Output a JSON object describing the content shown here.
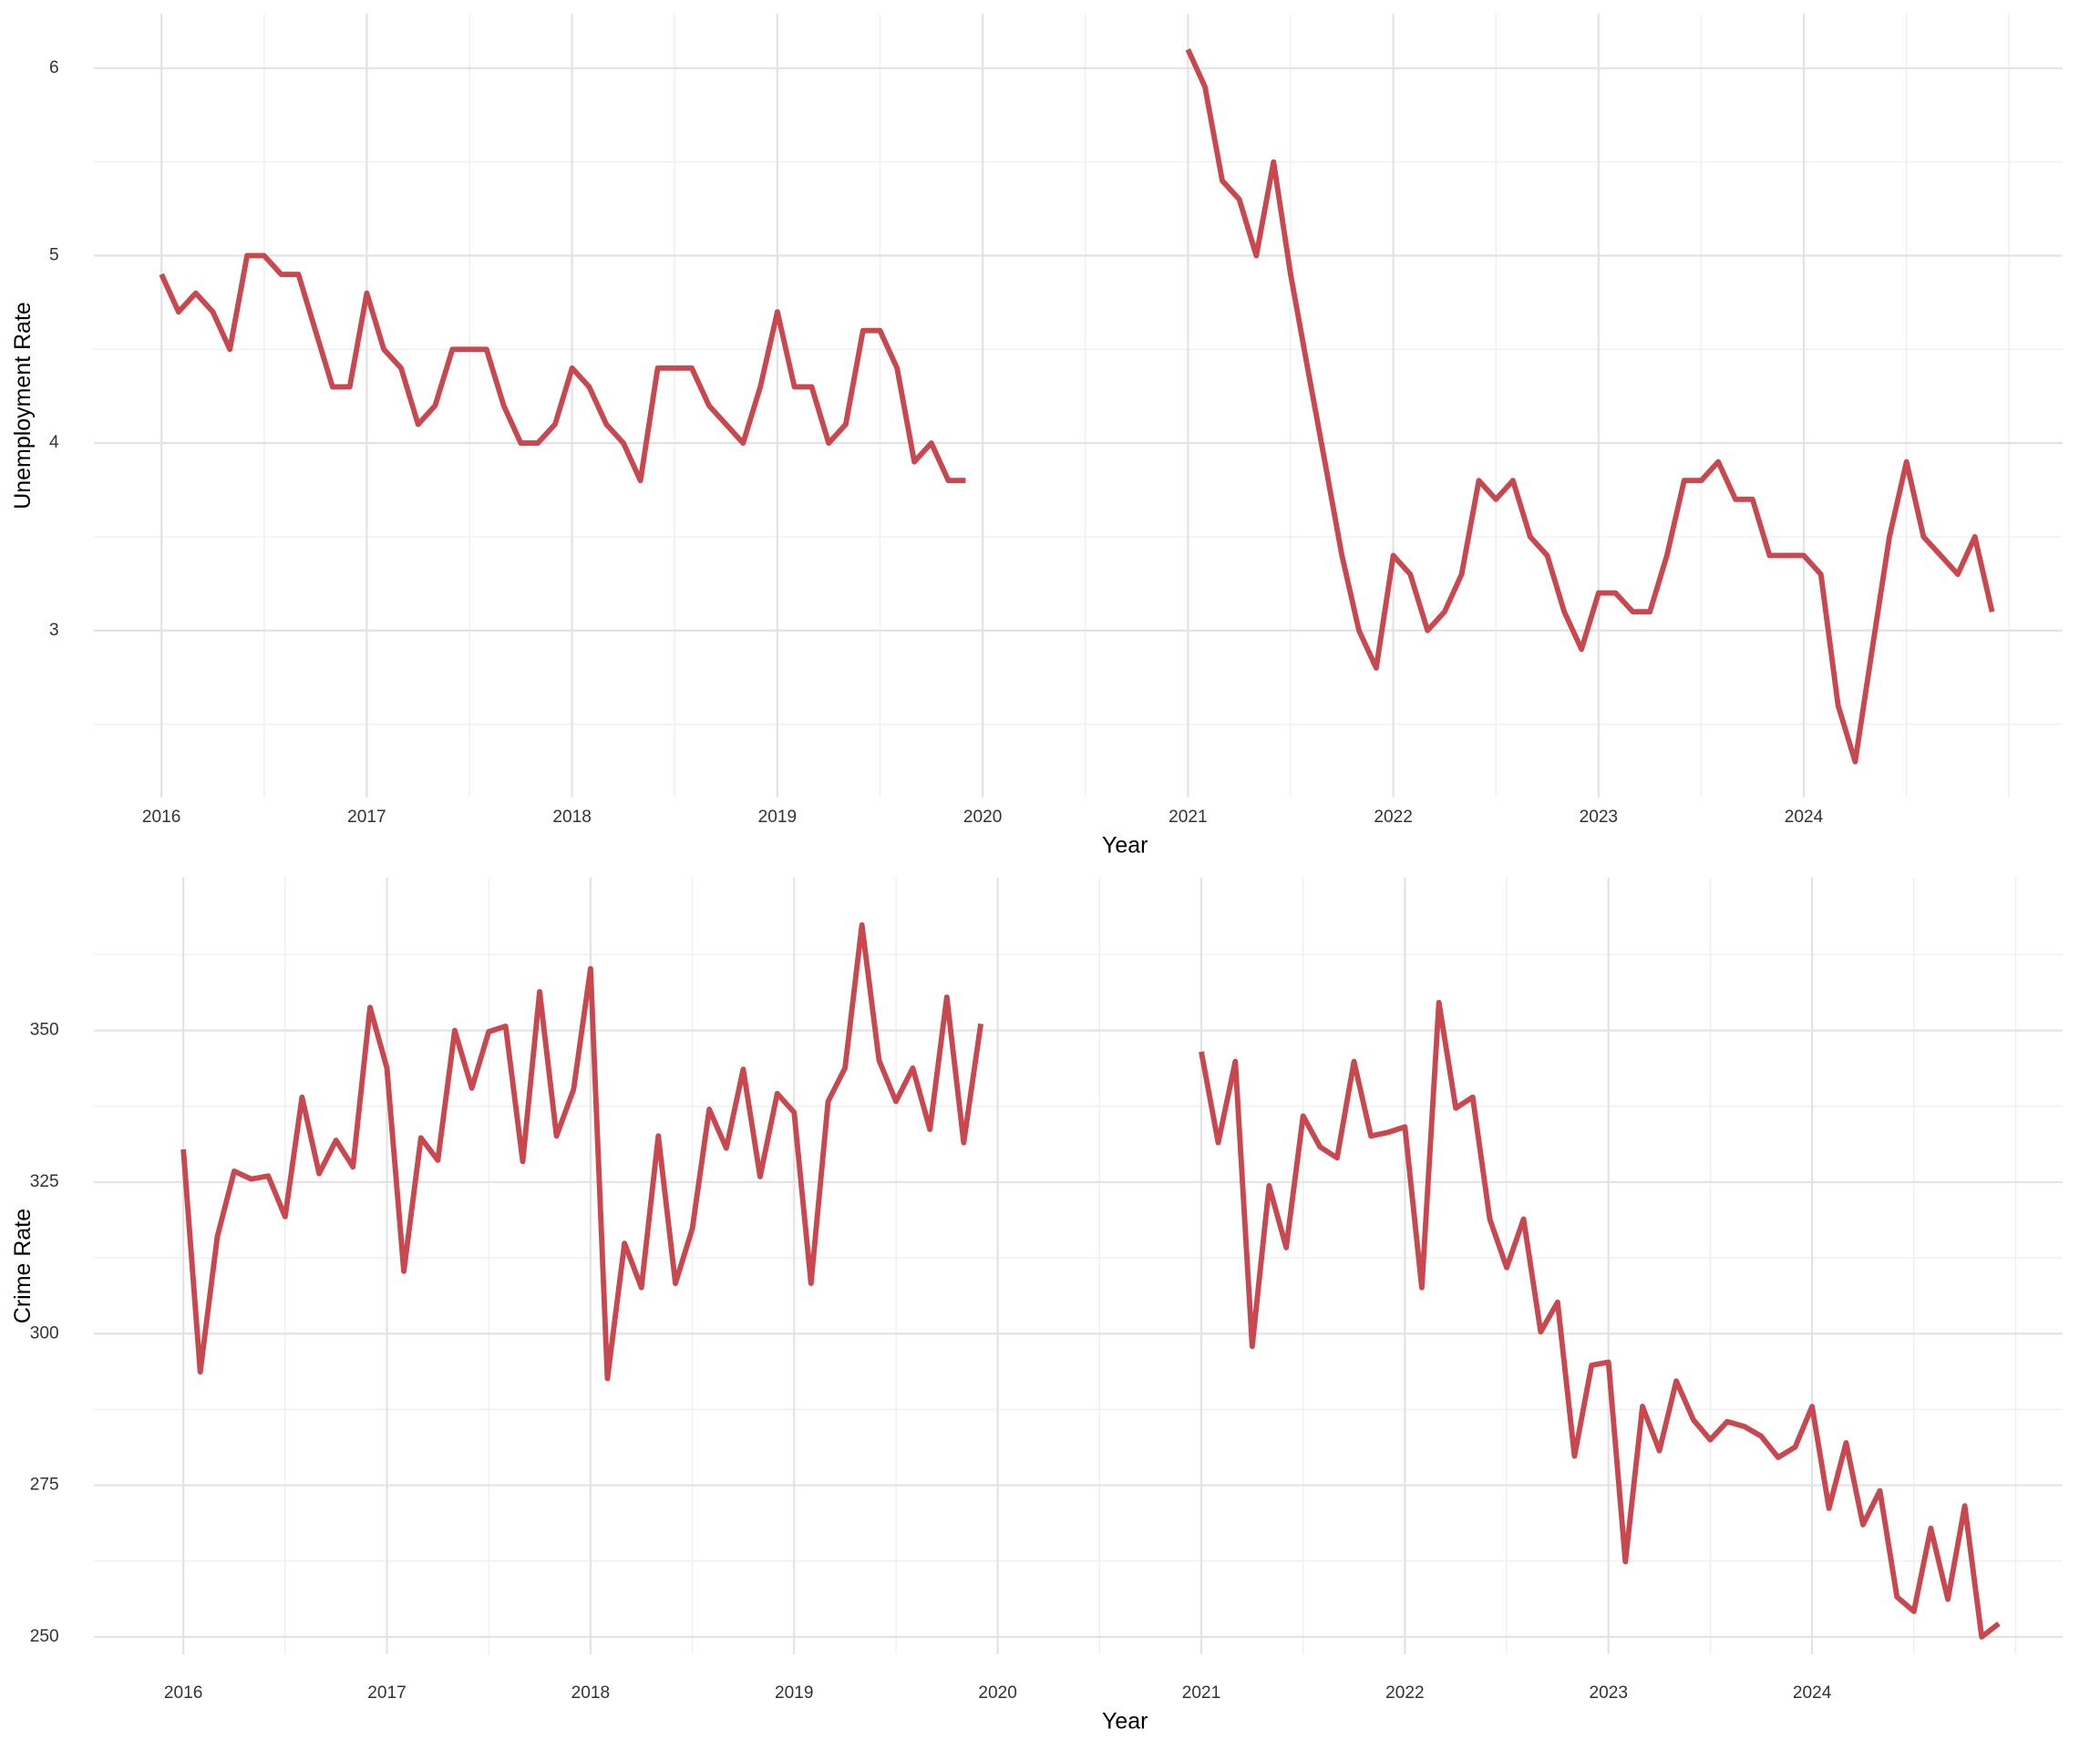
{
  "chart_data": [
    {
      "type": "line",
      "x_label": "Year",
      "y_label": "Unemployment Rate",
      "color": "#c9474f",
      "grid": true,
      "xlim": [
        2015.67,
        2025.26
      ],
      "ylim": [
        2.11,
        6.29
      ],
      "xticks": [
        2016,
        2017,
        2018,
        2019,
        2020,
        2021,
        2022,
        2023,
        2024
      ],
      "yticks": [
        3,
        4,
        5,
        6
      ],
      "x": [
        2016,
        2016.083,
        2016.167,
        2016.25,
        2016.333,
        2016.417,
        2016.5,
        2016.583,
        2016.667,
        2016.75,
        2016.833,
        2016.917,
        2017,
        2017.083,
        2017.167,
        2017.25,
        2017.333,
        2017.417,
        2017.5,
        2017.583,
        2017.667,
        2017.75,
        2017.833,
        2017.917,
        2018,
        2018.083,
        2018.167,
        2018.25,
        2018.333,
        2018.417,
        2018.5,
        2018.583,
        2018.667,
        2018.75,
        2018.833,
        2018.917,
        2019,
        2019.083,
        2019.167,
        2019.25,
        2019.333,
        2019.417,
        2019.5,
        2019.583,
        2019.667,
        2019.75,
        2019.833,
        2019.917,
        2020,
        2020.083,
        2020.167,
        2020.25,
        2020.333,
        2020.417,
        2020.5,
        2020.583,
        2020.667,
        2020.75,
        2020.833,
        2020.917,
        2021,
        2021.083,
        2021.167,
        2021.25,
        2021.333,
        2021.417,
        2021.5,
        2021.583,
        2021.667,
        2021.75,
        2021.833,
        2021.917,
        2022,
        2022.083,
        2022.167,
        2022.25,
        2022.333,
        2022.417,
        2022.5,
        2022.583,
        2022.667,
        2022.75,
        2022.833,
        2022.917,
        2023,
        2023.083,
        2023.167,
        2023.25,
        2023.333,
        2023.417,
        2023.5,
        2023.583,
        2023.667,
        2023.75,
        2023.833,
        2023.917,
        2024,
        2024.083,
        2024.167,
        2024.25,
        2024.333,
        2024.417,
        2024.5,
        2024.583,
        2024.667,
        2024.75,
        2024.833,
        2024.917
      ],
      "values": [
        4.9,
        4.7,
        4.8,
        4.7,
        4.5,
        5.0,
        5.0,
        4.9,
        4.9,
        4.6,
        4.3,
        4.3,
        4.8,
        4.5,
        4.4,
        4.1,
        4.2,
        4.5,
        4.5,
        4.5,
        4.2,
        4.0,
        4.0,
        4.1,
        4.4,
        4.3,
        4.1,
        4.0,
        3.8,
        4.4,
        4.4,
        4.4,
        4.2,
        4.1,
        4.0,
        4.3,
        4.7,
        4.3,
        4.3,
        4.0,
        4.1,
        4.6,
        4.6,
        4.4,
        3.9,
        4.0,
        3.8,
        3.8,
        null,
        null,
        null,
        null,
        null,
        null,
        null,
        null,
        null,
        null,
        null,
        null,
        6.1,
        5.9,
        5.4,
        5.3,
        5.0,
        5.5,
        4.9,
        4.4,
        3.9,
        3.4,
        3.0,
        2.8,
        3.4,
        3.3,
        3.0,
        3.1,
        3.3,
        3.8,
        3.7,
        3.8,
        3.5,
        3.4,
        3.1,
        2.9,
        3.2,
        3.2,
        3.1,
        3.1,
        3.4,
        3.8,
        3.8,
        3.9,
        3.7,
        3.7,
        3.4,
        3.4,
        3.4,
        3.3,
        2.6,
        2.3,
        2.9,
        3.5,
        3.9,
        3.5,
        3.4,
        3.3,
        3.5,
        3.1
      ]
    },
    {
      "type": "line",
      "x_label": "Year",
      "y_label": "Crime Rate",
      "color": "#c9474f",
      "grid": true,
      "xlim": [
        2015.56,
        2025.23
      ],
      "ylim": [
        247.1,
        375.2
      ],
      "xticks": [
        2016,
        2017,
        2018,
        2019,
        2020,
        2021,
        2022,
        2023,
        2024
      ],
      "yticks": [
        250,
        275,
        300,
        325,
        350
      ],
      "x": [
        2016,
        2016.083,
        2016.167,
        2016.25,
        2016.333,
        2016.417,
        2016.5,
        2016.583,
        2016.667,
        2016.75,
        2016.833,
        2016.917,
        2017,
        2017.083,
        2017.167,
        2017.25,
        2017.333,
        2017.417,
        2017.5,
        2017.583,
        2017.667,
        2017.75,
        2017.833,
        2017.917,
        2018,
        2018.083,
        2018.167,
        2018.25,
        2018.333,
        2018.417,
        2018.5,
        2018.583,
        2018.667,
        2018.75,
        2018.833,
        2018.917,
        2019,
        2019.083,
        2019.167,
        2019.25,
        2019.333,
        2019.417,
        2019.5,
        2019.583,
        2019.667,
        2019.75,
        2019.833,
        2019.917,
        2020,
        2020.083,
        2020.167,
        2020.25,
        2020.333,
        2020.417,
        2020.5,
        2020.583,
        2020.667,
        2020.75,
        2020.833,
        2020.917,
        2021,
        2021.083,
        2021.167,
        2021.25,
        2021.333,
        2021.417,
        2021.5,
        2021.583,
        2021.667,
        2021.75,
        2021.833,
        2021.917,
        2022,
        2022.083,
        2022.167,
        2022.25,
        2022.333,
        2022.417,
        2022.5,
        2022.583,
        2022.667,
        2022.75,
        2022.833,
        2022.917,
        2023,
        2023.083,
        2023.167,
        2023.25,
        2023.333,
        2023.417,
        2023.5,
        2023.583,
        2023.667,
        2023.75,
        2023.833,
        2023.917,
        2024,
        2024.083,
        2024.167,
        2024.25,
        2024.333,
        2024.417,
        2024.5,
        2024.583,
        2024.667,
        2024.75,
        2024.833,
        2024.917
      ],
      "values": [
        330.4,
        293.7,
        316,
        326.8,
        325.5,
        326,
        319.3,
        339,
        326.4,
        331.9,
        327.5,
        353.8,
        343.8,
        310.3,
        332.3,
        328.6,
        350,
        340.5,
        349.8,
        350.7,
        328.4,
        356.4,
        332.6,
        340.3,
        360.2,
        292.6,
        314.9,
        307.6,
        332.6,
        308.3,
        317.3,
        337,
        330.6,
        343.6,
        325.9,
        339.6,
        336.5,
        308.3,
        338.3,
        343.8,
        367.4,
        345.1,
        338.3,
        343.8,
        333.7,
        355.5,
        331.5,
        351.1,
        null,
        null,
        null,
        null,
        null,
        null,
        null,
        null,
        null,
        null,
        null,
        null,
        346.5,
        331.5,
        344.9,
        297.9,
        324.4,
        314.2,
        335.9,
        330.8,
        329,
        344.9,
        332.6,
        333.2,
        334.1,
        307.6,
        354.6,
        337.2,
        339,
        318.9,
        310.9,
        318.9,
        300.3,
        305.2,
        279.8,
        294.8,
        295.3,
        262.4,
        288,
        280.7,
        292.2,
        285.8,
        282.5,
        285.5,
        284.7,
        283.1,
        279.6,
        281.3,
        288,
        271.2,
        282,
        268.5,
        274.1,
        256.6,
        254.2,
        267.9,
        256.2,
        271.6,
        250,
        252.2
      ]
    }
  ]
}
